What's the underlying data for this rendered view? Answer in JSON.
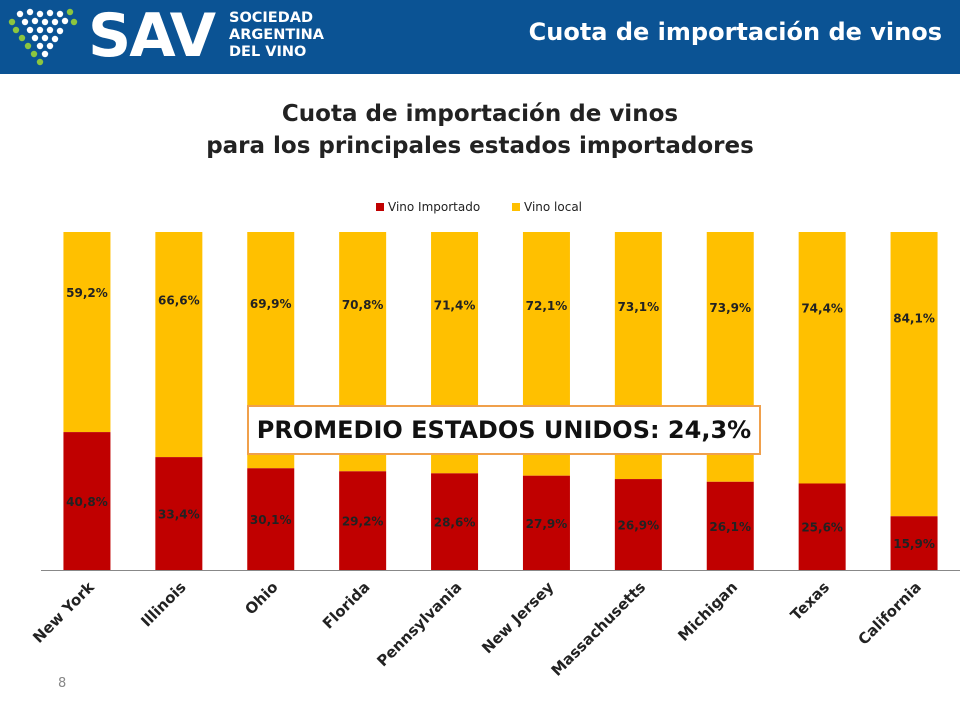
{
  "header": {
    "logo_word": "SAV",
    "logo_lines": [
      "SOCIEDAD",
      "ARGENTINA",
      "DEL VINO"
    ],
    "title": "Cuota de importación de vinos",
    "background": "#0b5394"
  },
  "chart_data": {
    "type": "bar",
    "stacked": true,
    "title_lines": [
      "Cuota de importación de vinos",
      "para los principales estados importadores"
    ],
    "categories": [
      "New York",
      "Illinois",
      "Ohio",
      "Florida",
      "Pennsylvania",
      "New Jersey",
      "Massachusetts",
      "Michigan",
      "Texas",
      "California"
    ],
    "series": [
      {
        "name": "Vino Importado",
        "color": "#c00000",
        "values": [
          40.8,
          33.4,
          30.1,
          29.2,
          28.6,
          27.9,
          26.9,
          26.1,
          25.6,
          15.9
        ],
        "labels": [
          "40,8%",
          "33,4%",
          "30,1%",
          "29,2%",
          "28,6%",
          "27,9%",
          "26,9%",
          "26,1%",
          "25,6%",
          "15,9%"
        ]
      },
      {
        "name": "Vino local",
        "color": "#ffc000",
        "values": [
          59.2,
          66.6,
          69.9,
          70.8,
          71.4,
          72.1,
          73.1,
          73.9,
          74.4,
          84.1
        ],
        "labels": [
          "59,2%",
          "66,6%",
          "69,9%",
          "70,8%",
          "71,4%",
          "72,1%",
          "73,1%",
          "73,9%",
          "74,4%",
          "84,1%"
        ]
      }
    ],
    "ylim": [
      0,
      100
    ],
    "legend_position": "top",
    "grid": false
  },
  "callout": {
    "text": "PROMEDIO ESTADOS UNIDOS: 24,3%"
  },
  "page_number": "8"
}
